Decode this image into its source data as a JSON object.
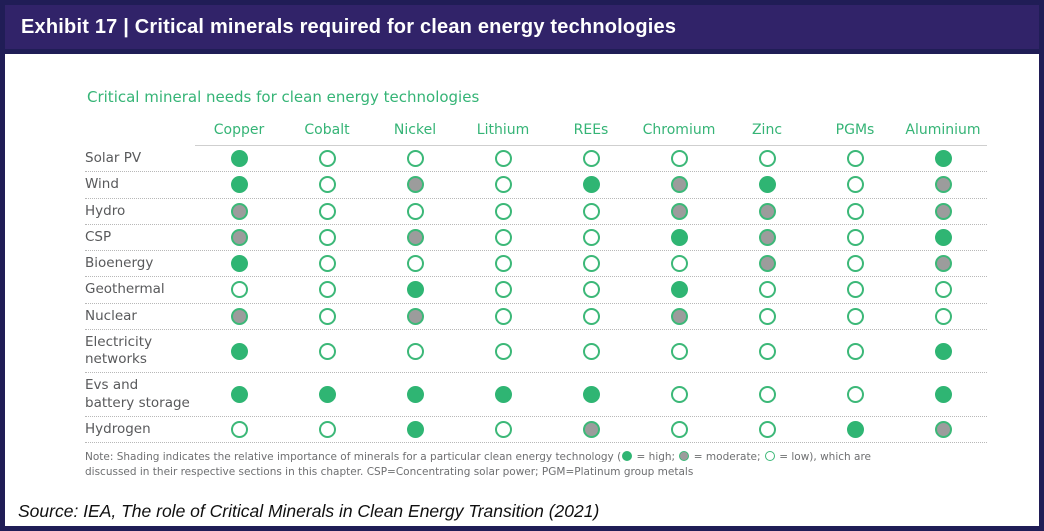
{
  "header": {
    "title": "Exhibit 17 | Critical minerals required for clean energy technologies"
  },
  "colors": {
    "navy": "#201d56",
    "purple": "#312369",
    "green": "#2fb573",
    "ring": "#3cb878",
    "gray": "#9c9c9c",
    "green_text": "#35b476"
  },
  "chart_data": {
    "type": "heatmap",
    "title": "Critical mineral needs for clean energy technologies",
    "columns": [
      "Copper",
      "Cobalt",
      "Nickel",
      "Lithium",
      "REEs",
      "Chromium",
      "Zinc",
      "PGMs",
      "Aluminium"
    ],
    "levels": [
      "high",
      "moderate",
      "low"
    ],
    "rows": [
      {
        "label_lines": [
          "Solar PV"
        ],
        "values": [
          "high",
          "low",
          "low",
          "low",
          "low",
          "low",
          "low",
          "low",
          "high"
        ]
      },
      {
        "label_lines": [
          "Wind"
        ],
        "values": [
          "high",
          "low",
          "moderate",
          "low",
          "high",
          "moderate",
          "high",
          "low",
          "moderate"
        ]
      },
      {
        "label_lines": [
          "Hydro"
        ],
        "values": [
          "moderate",
          "low",
          "low",
          "low",
          "low",
          "moderate",
          "moderate",
          "low",
          "moderate"
        ]
      },
      {
        "label_lines": [
          "CSP"
        ],
        "values": [
          "moderate",
          "low",
          "moderate",
          "low",
          "low",
          "high",
          "moderate",
          "low",
          "high"
        ]
      },
      {
        "label_lines": [
          "Bioenergy"
        ],
        "values": [
          "high",
          "low",
          "low",
          "low",
          "low",
          "low",
          "moderate",
          "low",
          "moderate"
        ]
      },
      {
        "label_lines": [
          "Geothermal"
        ],
        "values": [
          "low",
          "low",
          "high",
          "low",
          "low",
          "high",
          "low",
          "low",
          "low"
        ]
      },
      {
        "label_lines": [
          "Nuclear"
        ],
        "values": [
          "moderate",
          "low",
          "moderate",
          "low",
          "low",
          "moderate",
          "low",
          "low",
          "low"
        ]
      },
      {
        "label_lines": [
          "Electricity",
          "networks"
        ],
        "values": [
          "high",
          "low",
          "low",
          "low",
          "low",
          "low",
          "low",
          "low",
          "high"
        ]
      },
      {
        "label_lines": [
          "Evs and",
          "battery storage"
        ],
        "values": [
          "high",
          "high",
          "high",
          "high",
          "high",
          "low",
          "low",
          "low",
          "high"
        ]
      },
      {
        "label_lines": [
          "Hydrogen"
        ],
        "values": [
          "low",
          "low",
          "high",
          "low",
          "moderate",
          "low",
          "low",
          "high",
          "moderate"
        ]
      }
    ],
    "legend_note": "high / moderate / low importance shading"
  },
  "note": {
    "part1": "Note: Shading indicates the relative importance of minerals for a particular clean energy technology (",
    "high_label": " = high; ",
    "moderate_label": " = moderate; ",
    "low_label": " = low), which are discussed in their respective sections in this chapter.  CSP=Concentrating solar power; PGM=Platinum group metals"
  },
  "source": {
    "text": "Source: IEA, The role of Critical Minerals in Clean Energy Transition (2021)"
  }
}
